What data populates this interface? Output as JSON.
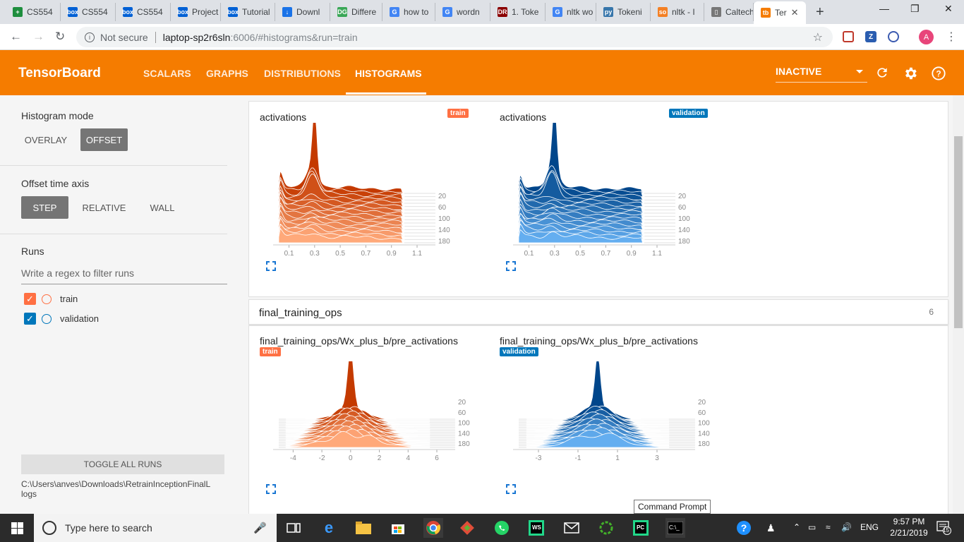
{
  "browser": {
    "tabs": [
      {
        "label": "CS554",
        "color": "#1e8e3e",
        "glyph": "+"
      },
      {
        "label": "CS554",
        "color": "#0061d5",
        "glyph": "box"
      },
      {
        "label": "CS554",
        "color": "#0061d5",
        "glyph": "box"
      },
      {
        "label": "Project",
        "color": "#0061d5",
        "glyph": "box"
      },
      {
        "label": "Tutorial",
        "color": "#0061d5",
        "glyph": "box"
      },
      {
        "label": "Downl",
        "color": "#1a73e8",
        "glyph": "↓"
      },
      {
        "label": "Differe",
        "color": "#3aa757",
        "glyph": "DG"
      },
      {
        "label": "how to",
        "color": "#4285f4",
        "glyph": "G"
      },
      {
        "label": "wordn",
        "color": "#4285f4",
        "glyph": "G"
      },
      {
        "label": "1. Toke",
        "color": "#8b0000",
        "glyph": "DR"
      },
      {
        "label": "nltk wo",
        "color": "#4285f4",
        "glyph": "G"
      },
      {
        "label": "Tokeni",
        "color": "#3776ab",
        "glyph": "py"
      },
      {
        "label": "nltk - I",
        "color": "#f48024",
        "glyph": "so"
      },
      {
        "label": "Caltech",
        "color": "#777777",
        "glyph": "▯"
      },
      {
        "label": "Ter",
        "color": "#f57c00",
        "glyph": "tb"
      }
    ],
    "url_security": "Not secure",
    "url_host": "laptop-sp2r6sln",
    "url_path": ":6006/#histograms&run=train",
    "avatar_letter": "A"
  },
  "tensorboard": {
    "title": "TensorBoard",
    "nav": [
      "SCALARS",
      "GRAPHS",
      "DISTRIBUTIONS",
      "HISTOGRAMS"
    ],
    "active_nav": "HISTOGRAMS",
    "status_select": "INACTIVE",
    "accent": "#f57c00"
  },
  "sidebar": {
    "histogram_mode_title": "Histogram mode",
    "mode_overlay": "OVERLAY",
    "mode_offset": "OFFSET",
    "offset_axis_title": "Offset time axis",
    "axis_step": "STEP",
    "axis_relative": "RELATIVE",
    "axis_wall": "WALL",
    "runs_title": "Runs",
    "filter_placeholder": "Write a regex to filter runs",
    "runs": [
      {
        "name": "train",
        "color": "#ff7043",
        "checked": true
      },
      {
        "name": "validation",
        "color": "#0077bb",
        "checked": true
      }
    ],
    "toggle_all": "TOGGLE ALL RUNS",
    "logdir_line1": "C:\\Users\\anves\\Downloads\\RetrainInceptionFinalL",
    "logdir_line2": "logs"
  },
  "main": {
    "charts": [
      {
        "title": "activations",
        "run": "train",
        "badge": "train",
        "color": "#ff7043"
      },
      {
        "title": "activations",
        "run": "validation",
        "badge": "validation",
        "color": "#0077bb"
      }
    ],
    "group": {
      "name": "final_training_ops",
      "count": "6"
    },
    "charts2": [
      {
        "title": "final_training_ops/Wx_plus_b/pre_activations",
        "badge": "train",
        "color": "#ff7043"
      },
      {
        "title": "final_training_ops/Wx_plus_b/pre_activations",
        "badge": "validation",
        "color": "#0077bb"
      }
    ],
    "step_ticks": [
      "20",
      "60",
      "100",
      "140",
      "180"
    ],
    "x_ticks_act": [
      "0.1",
      "0.3",
      "0.5",
      "0.7",
      "0.9",
      "1.1"
    ],
    "x_ticks_pre_train": [
      "-4",
      "-2",
      "0",
      "2",
      "4",
      "6"
    ],
    "x_ticks_pre_val": [
      "-3",
      "-1",
      "1",
      "3"
    ]
  },
  "tooltip": "Command Prompt",
  "taskbar": {
    "search_placeholder": "Type here to search",
    "language": "ENG",
    "time": "9:57 PM",
    "date": "2/21/2019",
    "notification_count": "15"
  },
  "chart_data": [
    {
      "type": "histogram",
      "title": "activations",
      "series": [
        {
          "name": "train"
        }
      ],
      "x_ticks": [
        0.1,
        0.3,
        0.5,
        0.7,
        0.9,
        1.1
      ],
      "step_ticks": [
        20,
        60,
        100,
        140,
        180
      ],
      "xlim": [
        0.0,
        1.1
      ],
      "peak_x": 0.3
    },
    {
      "type": "histogram",
      "title": "activations",
      "series": [
        {
          "name": "validation"
        }
      ],
      "x_ticks": [
        0.1,
        0.3,
        0.5,
        0.7,
        0.9,
        1.1
      ],
      "step_ticks": [
        20,
        60,
        100,
        140,
        180
      ],
      "xlim": [
        0.0,
        1.1
      ],
      "peak_x": 0.3
    },
    {
      "type": "histogram",
      "title": "final_training_ops/Wx_plus_b/pre_activations",
      "series": [
        {
          "name": "train"
        }
      ],
      "x_ticks": [
        -4,
        -2,
        0,
        2,
        4,
        6
      ],
      "step_ticks": [
        20,
        60,
        100,
        140,
        180
      ],
      "xlim": [
        -5,
        6
      ],
      "peak_x": 0
    },
    {
      "type": "histogram",
      "title": "final_training_ops/Wx_plus_b/pre_activations",
      "series": [
        {
          "name": "validation"
        }
      ],
      "x_ticks": [
        -3,
        -1,
        1,
        3
      ],
      "step_ticks": [
        20,
        60,
        100,
        140,
        180
      ],
      "xlim": [
        -4,
        4
      ],
      "peak_x": 0
    }
  ]
}
